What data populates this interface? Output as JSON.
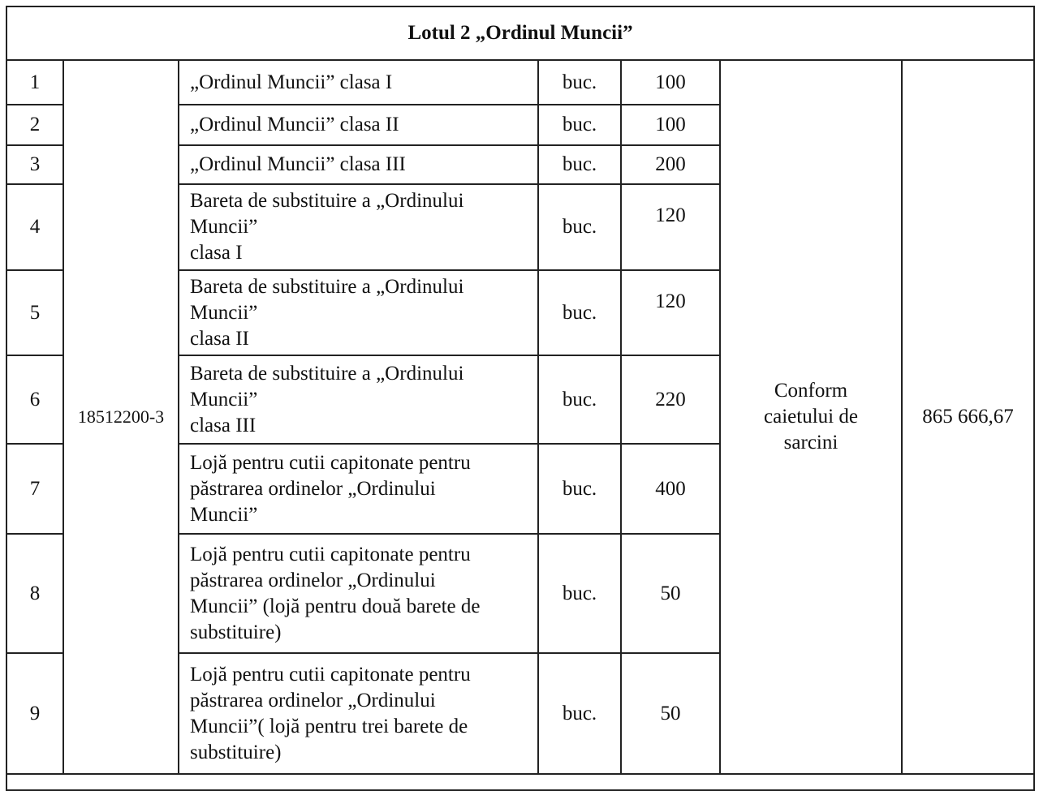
{
  "title": "Lotul 2  „Ordinul Muncii”",
  "cpv_code": "18512200-3",
  "unit_column_common": "buc.",
  "specification": "Conform\ncaietului de\nsarcini",
  "total_value": "865 666,67",
  "rows": [
    {
      "no": "1",
      "description": "„Ordinul Muncii” clasa I",
      "unit": "buc.",
      "quantity": "100"
    },
    {
      "no": "2",
      "description": "„Ordinul Muncii” clasa II",
      "unit": "buc.",
      "quantity": "100"
    },
    {
      "no": "3",
      "description": "„Ordinul Muncii” clasa III",
      "unit": "buc.",
      "quantity": "200"
    },
    {
      "no": "4",
      "description": "Bareta de substituire a „Ordinului\nMuncii”\nclasa I",
      "unit": "buc.",
      "quantity": "120"
    },
    {
      "no": "5",
      "description": "Bareta de substituire a „Ordinului\nMuncii”\nclasa II",
      "unit": "buc.",
      "quantity": "120"
    },
    {
      "no": "6",
      "description": "Bareta de substituire a „Ordinului\nMuncii”\nclasa III",
      "unit": "buc.",
      "quantity": "220"
    },
    {
      "no": "7",
      "description": "Lojă pentru cutii capitonate pentru\npăstrarea ordinelor „Ordinului\nMuncii”",
      "unit": "buc.",
      "quantity": "400"
    },
    {
      "no": "8",
      "description": "Lojă pentru cutii capitonate pentru\npăstrarea ordinelor „Ordinului\nMuncii” (lojă pentru două barete de\nsubstituire)",
      "unit": "buc.",
      "quantity": "50"
    },
    {
      "no": "9",
      "description": "Lojă pentru cutii capitonate pentru\npăstrarea ordinelor „Ordinului\nMuncii”( lojă pentru trei barete de\nsubstituire)",
      "unit": "buc.",
      "quantity": "50"
    }
  ]
}
